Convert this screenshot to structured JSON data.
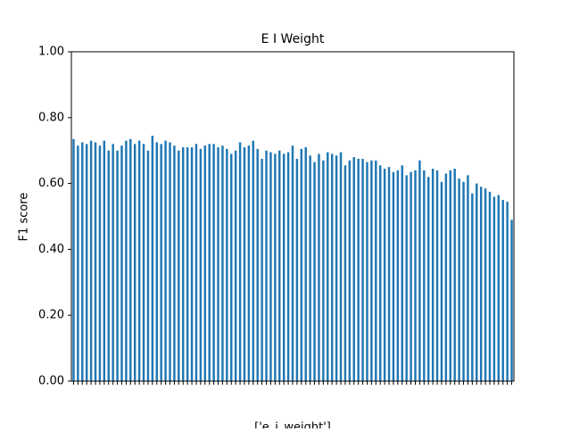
{
  "chart_data": {
    "type": "bar",
    "title": "E I Weight",
    "ylabel": "F1 score",
    "xlabel": "['e_i_weight']",
    "categories": [
      null,
      null,
      null,
      null,
      null,
      null,
      null,
      null,
      null,
      null,
      null,
      null,
      null,
      null,
      null,
      null,
      null,
      null,
      null,
      null,
      null,
      null,
      null,
      null,
      null,
      null,
      null,
      null,
      null,
      null,
      null,
      null,
      null,
      null,
      null,
      null,
      null,
      null,
      null,
      null,
      null,
      null,
      null,
      null,
      null,
      null,
      null,
      null,
      null,
      null,
      null,
      null,
      null,
      null,
      null,
      null,
      null,
      null,
      null,
      null,
      null,
      null,
      null,
      null,
      null,
      null,
      null,
      null,
      null,
      null,
      null,
      null,
      null,
      null,
      null,
      null,
      null,
      null,
      null,
      null,
      null,
      null,
      null,
      null,
      null,
      null,
      null,
      null,
      null,
      null,
      null,
      null,
      null,
      null,
      null,
      null,
      null,
      null,
      null,
      null,
      null
    ],
    "values": [
      0.735,
      0.715,
      0.725,
      0.72,
      0.73,
      0.725,
      0.715,
      0.73,
      0.7,
      0.72,
      0.7,
      0.715,
      0.73,
      0.735,
      0.72,
      0.73,
      0.72,
      0.7,
      0.745,
      0.725,
      0.72,
      0.73,
      0.725,
      0.715,
      0.7,
      0.71,
      0.71,
      0.71,
      0.72,
      0.705,
      0.715,
      0.72,
      0.72,
      0.71,
      0.715,
      0.705,
      0.69,
      0.7,
      0.725,
      0.71,
      0.715,
      0.73,
      0.705,
      0.675,
      0.7,
      0.695,
      0.69,
      0.7,
      0.69,
      0.695,
      0.715,
      0.675,
      0.705,
      0.71,
      0.685,
      0.665,
      0.69,
      0.67,
      0.695,
      0.69,
      0.685,
      0.695,
      0.655,
      0.67,
      0.68,
      0.675,
      0.675,
      0.665,
      0.67,
      0.67,
      0.655,
      0.645,
      0.65,
      0.635,
      0.64,
      0.655,
      0.625,
      0.635,
      0.64,
      0.67,
      0.64,
      0.62,
      0.645,
      0.64,
      0.605,
      0.63,
      0.64,
      0.645,
      0.615,
      0.605,
      0.625,
      0.57,
      0.6,
      0.59,
      0.585,
      0.575,
      0.56,
      0.565,
      0.55,
      0.545,
      0.49
    ],
    "color": "#1f77b4",
    "ylim": [
      0,
      1
    ],
    "yticks": [
      {
        "value": 0,
        "label": "0.00"
      },
      {
        "value": 0.2,
        "label": "0.20"
      },
      {
        "value": 0.4,
        "label": "0.40"
      },
      {
        "value": 0.6,
        "label": "0.60"
      },
      {
        "value": 0.8,
        "label": "0.80"
      },
      {
        "value": 1,
        "label": "1.00"
      }
    ],
    "grid": false
  }
}
